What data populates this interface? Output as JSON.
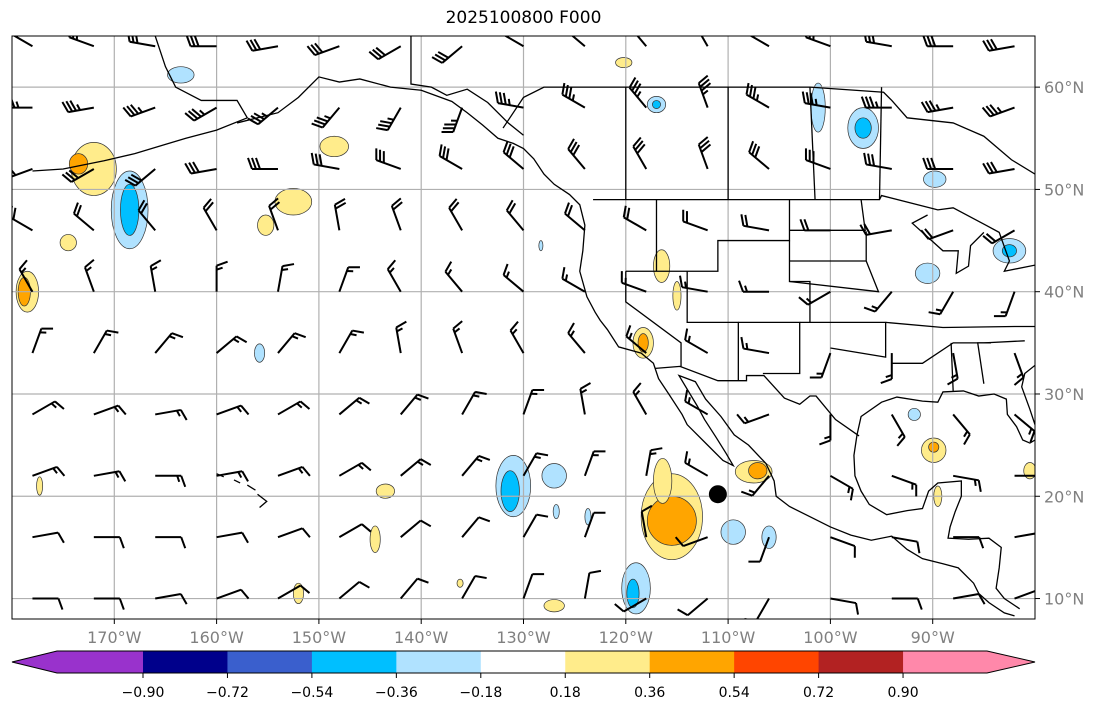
{
  "title": "2025100800 F000",
  "map": {
    "extent": {
      "lon_min": -180,
      "lon_max": -80,
      "lat_min": 8,
      "lat_max": 65
    },
    "lon_ticks": [
      {
        "value": -170,
        "label": "170°W"
      },
      {
        "value": -160,
        "label": "160°W"
      },
      {
        "value": -150,
        "label": "150°W"
      },
      {
        "value": -140,
        "label": "140°W"
      },
      {
        "value": -130,
        "label": "130°W"
      },
      {
        "value": -120,
        "label": "120°W"
      },
      {
        "value": -110,
        "label": "110°W"
      },
      {
        "value": -100,
        "label": "100°W"
      },
      {
        "value": -90,
        "label": "90°W"
      }
    ],
    "lat_ticks": [
      {
        "value": 60,
        "label": "60°N"
      },
      {
        "value": 50,
        "label": "50°N"
      },
      {
        "value": 40,
        "label": "40°N"
      },
      {
        "value": 30,
        "label": "30°N"
      },
      {
        "value": 20,
        "label": "20°N"
      },
      {
        "value": 10,
        "label": "10°N"
      }
    ],
    "marker": {
      "lon": -111,
      "lat": 20.2
    },
    "contours": [
      {
        "lon": -172,
        "lat": 52,
        "rx": 2.2,
        "ry": 2.6,
        "level": 0.27
      },
      {
        "lon": -173.5,
        "lat": 52.5,
        "rx": 0.9,
        "ry": 1.0,
        "level": 0.45
      },
      {
        "lon": -168.5,
        "lat": 48,
        "rx": 1.8,
        "ry": 3.8,
        "level": -0.27
      },
      {
        "lon": -168.5,
        "lat": 48,
        "rx": 0.9,
        "ry": 2.5,
        "level": -0.45
      },
      {
        "lon": -163.5,
        "lat": 61.2,
        "rx": 1.3,
        "ry": 0.8,
        "level": -0.27
      },
      {
        "lon": -178.5,
        "lat": 40,
        "rx": 1.1,
        "ry": 2.0,
        "level": 0.27
      },
      {
        "lon": -178.8,
        "lat": 40,
        "rx": 0.6,
        "ry": 1.4,
        "level": 0.45
      },
      {
        "lon": -174.5,
        "lat": 44.8,
        "rx": 0.8,
        "ry": 0.8,
        "level": 0.27
      },
      {
        "lon": -152.5,
        "lat": 48.8,
        "rx": 1.8,
        "ry": 1.3,
        "level": 0.27
      },
      {
        "lon": -155.2,
        "lat": 46.5,
        "rx": 0.8,
        "ry": 1.0,
        "level": 0.27
      },
      {
        "lon": -148.5,
        "lat": 54.2,
        "rx": 1.4,
        "ry": 1.0,
        "level": 0.27
      },
      {
        "lon": -131,
        "lat": 21,
        "rx": 1.7,
        "ry": 3.0,
        "level": -0.27
      },
      {
        "lon": -131.3,
        "lat": 20.5,
        "rx": 0.9,
        "ry": 2.0,
        "level": -0.45
      },
      {
        "lon": -127,
        "lat": 22,
        "rx": 1.2,
        "ry": 1.2,
        "level": -0.27
      },
      {
        "lon": -115.5,
        "lat": 18,
        "rx": 3.0,
        "ry": 4.2,
        "level": 0.27
      },
      {
        "lon": -115.5,
        "lat": 17.6,
        "rx": 2.4,
        "ry": 2.4,
        "level": 0.45
      },
      {
        "lon": -116.4,
        "lat": 21.5,
        "rx": 0.9,
        "ry": 2.2,
        "level": 0.27
      },
      {
        "lon": -119,
        "lat": 11,
        "rx": 1.4,
        "ry": 2.5,
        "level": -0.27
      },
      {
        "lon": -119.3,
        "lat": 10.5,
        "rx": 0.6,
        "ry": 1.4,
        "level": -0.45
      },
      {
        "lon": -107.5,
        "lat": 22.4,
        "rx": 1.8,
        "ry": 1.1,
        "level": 0.27
      },
      {
        "lon": -107.1,
        "lat": 22.5,
        "rx": 0.9,
        "ry": 0.8,
        "level": 0.45
      },
      {
        "lon": -109.5,
        "lat": 16.5,
        "rx": 1.2,
        "ry": 1.2,
        "level": -0.27
      },
      {
        "lon": -106,
        "lat": 16,
        "rx": 0.7,
        "ry": 1.1,
        "level": -0.27
      },
      {
        "lon": -118.3,
        "lat": 35,
        "rx": 1.0,
        "ry": 1.5,
        "level": 0.27
      },
      {
        "lon": -118.3,
        "lat": 35,
        "rx": 0.5,
        "ry": 0.9,
        "level": 0.45
      },
      {
        "lon": -116.5,
        "lat": 42.5,
        "rx": 0.8,
        "ry": 1.6,
        "level": 0.27
      },
      {
        "lon": -115,
        "lat": 39.6,
        "rx": 0.4,
        "ry": 1.4,
        "level": 0.27
      },
      {
        "lon": -96.8,
        "lat": 56,
        "rx": 1.5,
        "ry": 2.0,
        "level": -0.27
      },
      {
        "lon": -96.8,
        "lat": 56,
        "rx": 0.8,
        "ry": 1.0,
        "level": -0.45
      },
      {
        "lon": -117,
        "lat": 58.3,
        "rx": 0.9,
        "ry": 0.8,
        "level": -0.27
      },
      {
        "lon": -117,
        "lat": 58.3,
        "rx": 0.4,
        "ry": 0.4,
        "level": -0.45
      },
      {
        "lon": -101.2,
        "lat": 58,
        "rx": 0.7,
        "ry": 2.4,
        "level": -0.27
      },
      {
        "lon": -89.8,
        "lat": 51,
        "rx": 1.1,
        "ry": 0.8,
        "level": -0.27
      },
      {
        "lon": -82.5,
        "lat": 44,
        "rx": 1.6,
        "ry": 1.2,
        "level": -0.27
      },
      {
        "lon": -82.5,
        "lat": 44,
        "rx": 0.7,
        "ry": 0.6,
        "level": -0.45
      },
      {
        "lon": -90.5,
        "lat": 41.8,
        "rx": 1.2,
        "ry": 1.0,
        "level": -0.27
      },
      {
        "lon": -89.9,
        "lat": 24.5,
        "rx": 1.2,
        "ry": 1.2,
        "level": 0.27
      },
      {
        "lon": -89.9,
        "lat": 24.8,
        "rx": 0.5,
        "ry": 0.5,
        "level": 0.45
      },
      {
        "lon": -91.8,
        "lat": 28,
        "rx": 0.6,
        "ry": 0.6,
        "level": -0.27
      },
      {
        "lon": -80.5,
        "lat": 22.5,
        "rx": 0.6,
        "ry": 0.8,
        "level": 0.27
      },
      {
        "lon": -89.5,
        "lat": 20,
        "rx": 0.4,
        "ry": 1.0,
        "level": 0.27
      },
      {
        "lon": -144.5,
        "lat": 15.8,
        "rx": 0.5,
        "ry": 1.3,
        "level": 0.27
      },
      {
        "lon": -143.5,
        "lat": 20.5,
        "rx": 0.9,
        "ry": 0.7,
        "level": 0.27
      },
      {
        "lon": -152,
        "lat": 10.5,
        "rx": 0.5,
        "ry": 1.0,
        "level": 0.27
      },
      {
        "lon": -155.8,
        "lat": 34,
        "rx": 0.5,
        "ry": 0.9,
        "level": -0.27
      },
      {
        "lon": -177.3,
        "lat": 21,
        "rx": 0.3,
        "ry": 0.9,
        "level": 0.27
      },
      {
        "lon": -126.8,
        "lat": 18.5,
        "rx": 0.3,
        "ry": 0.7,
        "level": -0.27
      },
      {
        "lon": -123.7,
        "lat": 18,
        "rx": 0.3,
        "ry": 0.8,
        "level": -0.27
      },
      {
        "lon": -127,
        "lat": 9.3,
        "rx": 1.0,
        "ry": 0.6,
        "level": 0.27
      },
      {
        "lon": -136.2,
        "lat": 11.5,
        "rx": 0.3,
        "ry": 0.4,
        "level": 0.27
      },
      {
        "lon": -128.3,
        "lat": 44.5,
        "rx": 0.2,
        "ry": 0.5,
        "level": -0.27
      },
      {
        "lon": -120.2,
        "lat": 62.4,
        "rx": 0.8,
        "ry": 0.5,
        "level": 0.27
      }
    ],
    "wind": {
      "lons": [
        -178,
        -172,
        -166,
        -160,
        -154,
        -148,
        -142,
        -136,
        -130,
        -124,
        -118,
        -112,
        -106,
        -100,
        -94,
        -88,
        -82
      ],
      "lats": [
        64,
        58,
        52,
        46,
        40,
        34,
        28,
        22,
        16,
        10
      ],
      "dir_deg": [
        [
          300,
          290,
          280,
          270,
          260,
          250,
          240,
          230,
          300,
          310,
          320,
          330,
          300,
          290,
          280,
          270,
          260
        ],
        [
          270,
          260,
          250,
          240,
          230,
          220,
          210,
          200,
          280,
          300,
          320,
          340,
          300,
          280,
          270,
          260,
          250
        ],
        [
          250,
          240,
          230,
          260,
          270,
          280,
          290,
          300,
          310,
          320,
          330,
          340,
          310,
          290,
          280,
          270,
          260
        ],
        [
          300,
          310,
          320,
          330,
          340,
          350,
          340,
          330,
          320,
          310,
          300,
          290,
          280,
          270,
          260,
          250,
          240
        ],
        [
          330,
          340,
          350,
          0,
          10,
          20,
          330,
          320,
          310,
          300,
          290,
          280,
          270,
          240,
          220,
          210,
          200
        ],
        [
          20,
          30,
          40,
          50,
          40,
          30,
          350,
          340,
          330,
          320,
          310,
          300,
          280,
          200,
          180,
          170,
          160
        ],
        [
          60,
          70,
          80,
          70,
          60,
          50,
          40,
          30,
          20,
          350,
          330,
          300,
          250,
          180,
          150,
          140,
          130
        ],
        [
          70,
          80,
          90,
          80,
          70,
          60,
          50,
          40,
          30,
          20,
          10,
          300,
          220,
          120,
          110,
          100,
          90
        ],
        [
          80,
          90,
          90,
          80,
          70,
          60,
          50,
          40,
          30,
          20,
          350,
          250,
          200,
          110,
          100,
          90,
          80
        ],
        [
          90,
          90,
          80,
          70,
          60,
          50,
          40,
          30,
          20,
          10,
          240,
          230,
          210,
          100,
          90,
          80,
          70
        ]
      ],
      "speed_kt": [
        30,
        35,
        30,
        20,
        15,
        15,
        15,
        15,
        10,
        10
      ]
    }
  },
  "colorbar": {
    "colors": [
      "#9932cc",
      "#00008b",
      "#3a5fcd",
      "#00bfff",
      "#b0e2ff",
      "#ffffff",
      "#ffec8b",
      "#ffa500",
      "#ff4500",
      "#b22222",
      "#ff88aa"
    ],
    "ticks": [
      "−0.90",
      "−0.72",
      "−0.54",
      "−0.36",
      "−0.18",
      "0.18",
      "0.36",
      "0.54",
      "0.72",
      "0.90"
    ],
    "tick_values": [
      -0.9,
      -0.72,
      -0.54,
      -0.36,
      -0.18,
      0.18,
      0.36,
      0.54,
      0.72,
      0.9
    ]
  }
}
